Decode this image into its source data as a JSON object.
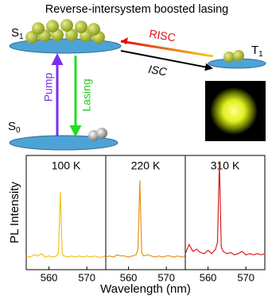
{
  "diagram": {
    "title": "Reverse-intersystem boosted lasing",
    "s1": {
      "letter": "S",
      "sub": "1"
    },
    "s0": {
      "letter": "S",
      "sub": "0"
    },
    "t1": {
      "letter": "T",
      "sub": "1"
    },
    "pump": "Pump",
    "lasing": "Lasing",
    "risc": "RISC",
    "isc": "ISC"
  },
  "chart_data": [
    {
      "type": "line",
      "label": "100 K",
      "ylabel": "PL Intensity",
      "color": "#f2c21b",
      "x": [
        554,
        555,
        556,
        557,
        558,
        559,
        560,
        561,
        562,
        562.5,
        563,
        563.5,
        564,
        565,
        566,
        567,
        568,
        569,
        570,
        571,
        572,
        573,
        574,
        575
      ],
      "values": [
        12,
        11,
        13,
        12,
        14,
        11,
        12,
        11,
        12,
        15,
        68,
        14,
        12,
        11,
        12,
        11,
        12,
        11,
        12,
        11,
        12,
        11,
        11,
        12
      ],
      "xlim": [
        554,
        575
      ],
      "ylim": [
        0,
        100
      ],
      "xticks": [
        560,
        570
      ]
    },
    {
      "type": "line",
      "label": "220 K",
      "xlabel": "Wavelength (nm)",
      "color": "#e8901a",
      "x": [
        554,
        555,
        556,
        557,
        558,
        559,
        560,
        561,
        562,
        562.5,
        563,
        563.5,
        564,
        565,
        566,
        567,
        568,
        569,
        570,
        571,
        572,
        573,
        574,
        575
      ],
      "values": [
        11,
        12,
        11,
        13,
        12,
        12,
        11,
        12,
        13,
        18,
        78,
        15,
        12,
        13,
        12,
        11,
        12,
        11,
        12,
        12,
        11,
        12,
        11,
        12
      ],
      "xlim": [
        554,
        575
      ],
      "ylim": [
        0,
        100
      ],
      "xticks": [
        560,
        570
      ]
    },
    {
      "type": "line",
      "label": "310 K",
      "color": "#d81e1e",
      "x": [
        554,
        555,
        556,
        557,
        558,
        559,
        560,
        561,
        562,
        562.5,
        563,
        563.5,
        564,
        565,
        566,
        567,
        568,
        569,
        570,
        571,
        572,
        573,
        574,
        575
      ],
      "values": [
        14,
        22,
        16,
        18,
        15,
        14,
        17,
        14,
        18,
        24,
        95,
        20,
        16,
        14,
        15,
        13,
        14,
        16,
        13,
        14,
        13,
        14,
        13,
        14
      ],
      "xlim": [
        554,
        575
      ],
      "ylim": [
        0,
        100
      ],
      "xticks": [
        560,
        570
      ]
    }
  ]
}
